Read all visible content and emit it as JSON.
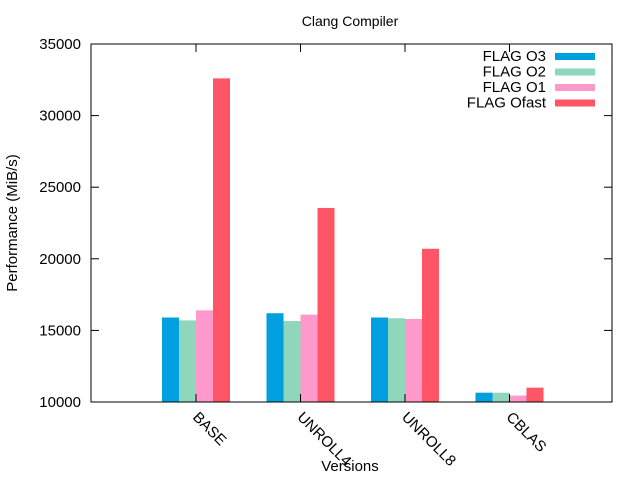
{
  "chart_data": {
    "type": "bar",
    "title": "Clang Compiler",
    "xlabel": "Versions",
    "ylabel": "Performance (MiB/s)",
    "categories": [
      "BASE",
      "UNROLL4",
      "UNROLL8",
      "CBLAS"
    ],
    "ylim": [
      10000,
      35000
    ],
    "yticks": [
      10000,
      15000,
      20000,
      25000,
      30000,
      35000
    ],
    "grid": false,
    "legend_position": "top-right",
    "series": [
      {
        "name": "FLAG O3",
        "color": "#009fdf",
        "values": [
          15900,
          16200,
          15900,
          10650
        ]
      },
      {
        "name": "FLAG O2",
        "color": "#8fd6bb",
        "values": [
          15700,
          15650,
          15850,
          10650
        ]
      },
      {
        "name": "FLAG O1",
        "color": "#ff99cc",
        "values": [
          16400,
          16100,
          15800,
          10450
        ]
      },
      {
        "name": "FLAG Ofast",
        "color": "#ff5566",
        "values": [
          32600,
          23550,
          20700,
          11000
        ]
      }
    ]
  }
}
